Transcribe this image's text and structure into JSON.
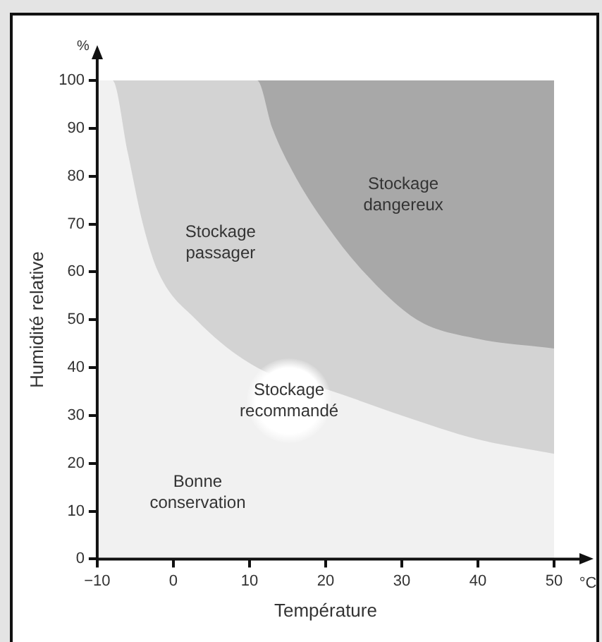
{
  "chart_data": {
    "type": "area",
    "xlabel": "Température",
    "ylabel": "Humidité relative",
    "xlim": [
      -10,
      50
    ],
    "ylim": [
      0,
      100
    ],
    "xticks": [
      -10,
      0,
      10,
      20,
      30,
      40,
      50
    ],
    "yticks": [
      0,
      10,
      20,
      30,
      40,
      50,
      60,
      70,
      80,
      90,
      100
    ],
    "grid": false,
    "legend": false,
    "series": [
      {
        "color": "#f1f1f1",
        "x": [
          -10,
          -8,
          -6,
          -4,
          -2,
          3,
          11,
          21,
          30,
          40,
          50
        ],
        "values": [
          100,
          100,
          85,
          70,
          60,
          50,
          40,
          35,
          30,
          25,
          22
        ]
      },
      {
        "color": "#d3d3d3",
        "x": [
          -8,
          11,
          13,
          16,
          20,
          25,
          32,
          40,
          50
        ],
        "values": [
          100,
          100,
          90,
          80,
          70,
          60,
          50,
          46,
          44
        ]
      },
      {
        "color": "#a8a8a8",
        "x": [
          11,
          50
        ],
        "values": [
          100,
          100
        ]
      }
    ],
    "annotations": [
      "%",
      "°C",
      "Stockage dangereux",
      "Stockage passager",
      "Stockage recommandé",
      "Bonne conservation"
    ]
  }
}
